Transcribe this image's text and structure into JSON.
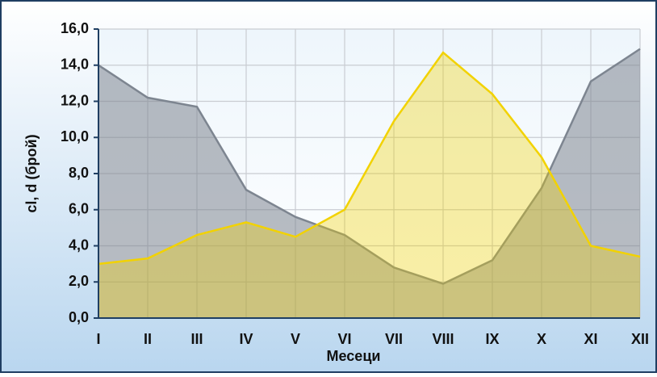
{
  "chart_data": {
    "type": "area",
    "categories": [
      "I",
      "II",
      "III",
      "IV",
      "V",
      "VI",
      "VII",
      "VIII",
      "IX",
      "X",
      "XI",
      "XII"
    ],
    "series": [
      {
        "name": "cl",
        "color": "#7d8590",
        "values": [
          14.0,
          12.2,
          11.7,
          7.1,
          5.6,
          4.6,
          2.8,
          1.9,
          3.2,
          7.2,
          13.1,
          14.9
        ]
      },
      {
        "name": "d",
        "color": "#f2d200",
        "values": [
          3.0,
          3.3,
          4.6,
          5.3,
          4.5,
          6.0,
          10.9,
          14.7,
          12.4,
          8.9,
          4.0,
          3.4
        ]
      }
    ],
    "ylim": [
      0,
      16
    ],
    "yticks": [
      {
        "value": 0,
        "label": "0,0"
      },
      {
        "value": 2,
        "label": "2,0"
      },
      {
        "value": 4,
        "label": "4,0"
      },
      {
        "value": 6,
        "label": "6,0"
      },
      {
        "value": 8,
        "label": "8,0"
      },
      {
        "value": 10,
        "label": "10,0"
      },
      {
        "value": 12,
        "label": "12,0"
      },
      {
        "value": 14,
        "label": "14,0"
      },
      {
        "value": 16,
        "label": "16,0"
      }
    ],
    "ylabel": "cl, d (брой)",
    "xlabel": "Месеци",
    "grid": true
  }
}
